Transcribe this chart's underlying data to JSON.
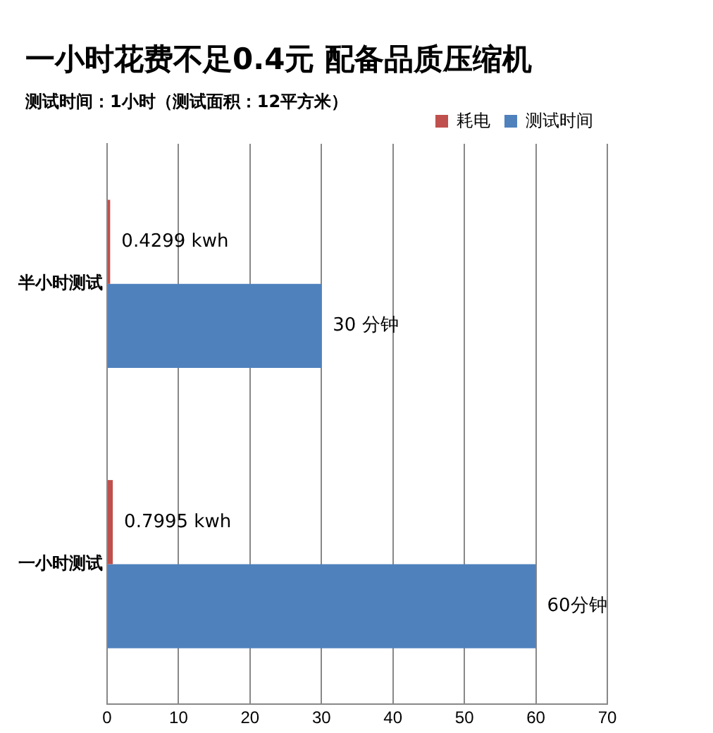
{
  "chart_data": {
    "type": "bar",
    "orientation": "horizontal",
    "title": "一小时花费不足0.4元 配备品质压缩机",
    "subtitle": "测试时间：1小时（测试面积：12平方米）",
    "categories": [
      "半小时测试",
      "一小时测试"
    ],
    "series": [
      {
        "name": "耗电",
        "color": "#c0504d",
        "values": [
          0.4299,
          0.7995
        ],
        "value_labels": [
          "0.4299 kwh",
          "0.7995 kwh"
        ]
      },
      {
        "name": "测试时间",
        "color": "#4f81bd",
        "values": [
          30,
          60
        ],
        "value_labels": [
          "30 分钟",
          "60分钟"
        ]
      }
    ],
    "xlim": [
      0,
      70
    ],
    "xticks": [
      0,
      10,
      20,
      30,
      40,
      50,
      60,
      70
    ],
    "grid": "x",
    "legend": "top right"
  }
}
